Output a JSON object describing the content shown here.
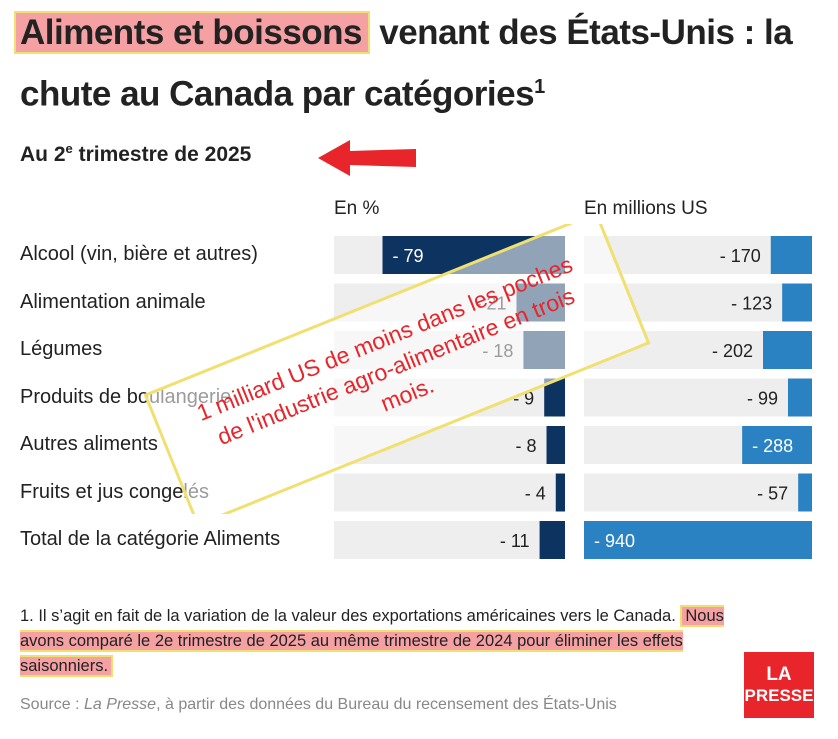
{
  "header": {
    "title_highlight": "Aliments et boissons",
    "title_rest": " venant des États-Unis : la chute au Canada par catégories",
    "title_sup": "1",
    "subtitle_pre": "Au 2",
    "subtitle_sup": "e",
    "subtitle_post": " trimestre de 2025"
  },
  "colors": {
    "dark_bar": "#0d3461",
    "blue_bar": "#2b82c2",
    "track": "#eeeeee",
    "arrow": "#e8252b",
    "highlight": "#f5a0a3",
    "annotation_text": "#e8252b"
  },
  "chart_data": {
    "type": "bar",
    "categories": [
      "Alcool (vin, bière et autres)",
      "Alimentation animale",
      "Légumes",
      "Produits de boulangerie",
      "Autres aliments",
      "Fruits et jus congelés",
      "Total de la catégorie Aliments"
    ],
    "series": [
      {
        "name": "En %",
        "values": [
          -79,
          -21,
          -18,
          -9,
          -8,
          -4,
          -11
        ],
        "labels": [
          "- 79",
          "- 21",
          "- 18",
          "- 9",
          "- 8",
          "- 4",
          "- 11"
        ]
      },
      {
        "name": "En millions US",
        "values": [
          -170,
          -123,
          -202,
          -99,
          -288,
          -57,
          -940
        ],
        "labels": [
          "- 170",
          "- 123",
          "- 202",
          "- 99",
          "- 288",
          "- 57",
          "- 940"
        ]
      }
    ],
    "xlim_pct": [
      -100,
      0
    ],
    "xlim_musd": [
      -940,
      0
    ],
    "legend": "column headers"
  },
  "annotation": {
    "lines": [
      "1 milliard US de moins dans les poches",
      "de l'industrie agro-alimentaire en trois",
      "mois."
    ],
    "arrow_icon": "left-arrow-icon"
  },
  "footnote": {
    "part1": "1. Il s’agit en fait de la variation de la valeur des exportations américaines vers le Canada. ",
    "highlight": "Nous avons comparé le 2e trimestre de 2025 au même trimestre de 2024 pour éliminer les effets saisonniers."
  },
  "source": {
    "prefix": "Source : ",
    "publication": "La Presse",
    "suffix": ", à partir des données du Bureau du recensement des États-Unis"
  },
  "logo": {
    "line1": "LA",
    "line2": "PRESSE"
  }
}
